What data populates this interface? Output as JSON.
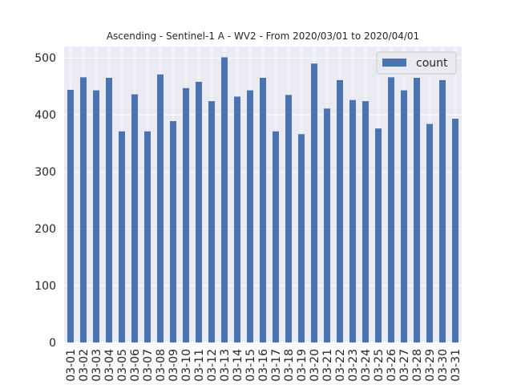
{
  "chart_data": {
    "type": "bar",
    "title": "Ascending - Sentinel-1 A - WV2 - From 2020/03/01 to 2020/04/01",
    "xlabel": "",
    "ylabel": "",
    "ylim": [
      0,
      520
    ],
    "yticks": [
      0,
      100,
      200,
      300,
      400,
      500
    ],
    "grid": true,
    "legend_position": "top-right",
    "colors": {
      "bar": "#4c72b0",
      "plot_bg": "#eaeaf2",
      "grid": "#ffffff"
    },
    "categories": [
      "03-01",
      "03-02",
      "03-03",
      "03-04",
      "03-05",
      "03-06",
      "03-07",
      "03-08",
      "03-09",
      "03-10",
      "03-11",
      "03-12",
      "03-13",
      "03-14",
      "03-15",
      "03-16",
      "03-17",
      "03-18",
      "03-19",
      "03-20",
      "03-21",
      "03-22",
      "03-23",
      "03-24",
      "03-25",
      "03-26",
      "03-27",
      "03-28",
      "03-29",
      "03-30",
      "03-31"
    ],
    "series": [
      {
        "name": "count",
        "values": [
          444,
          466,
          443,
          465,
          371,
          436,
          371,
          471,
          389,
          447,
          458,
          424,
          501,
          432,
          443,
          465,
          371,
          435,
          366,
          490,
          411,
          461,
          426,
          424,
          376,
          466,
          443,
          465,
          384,
          461,
          393
        ]
      }
    ]
  }
}
